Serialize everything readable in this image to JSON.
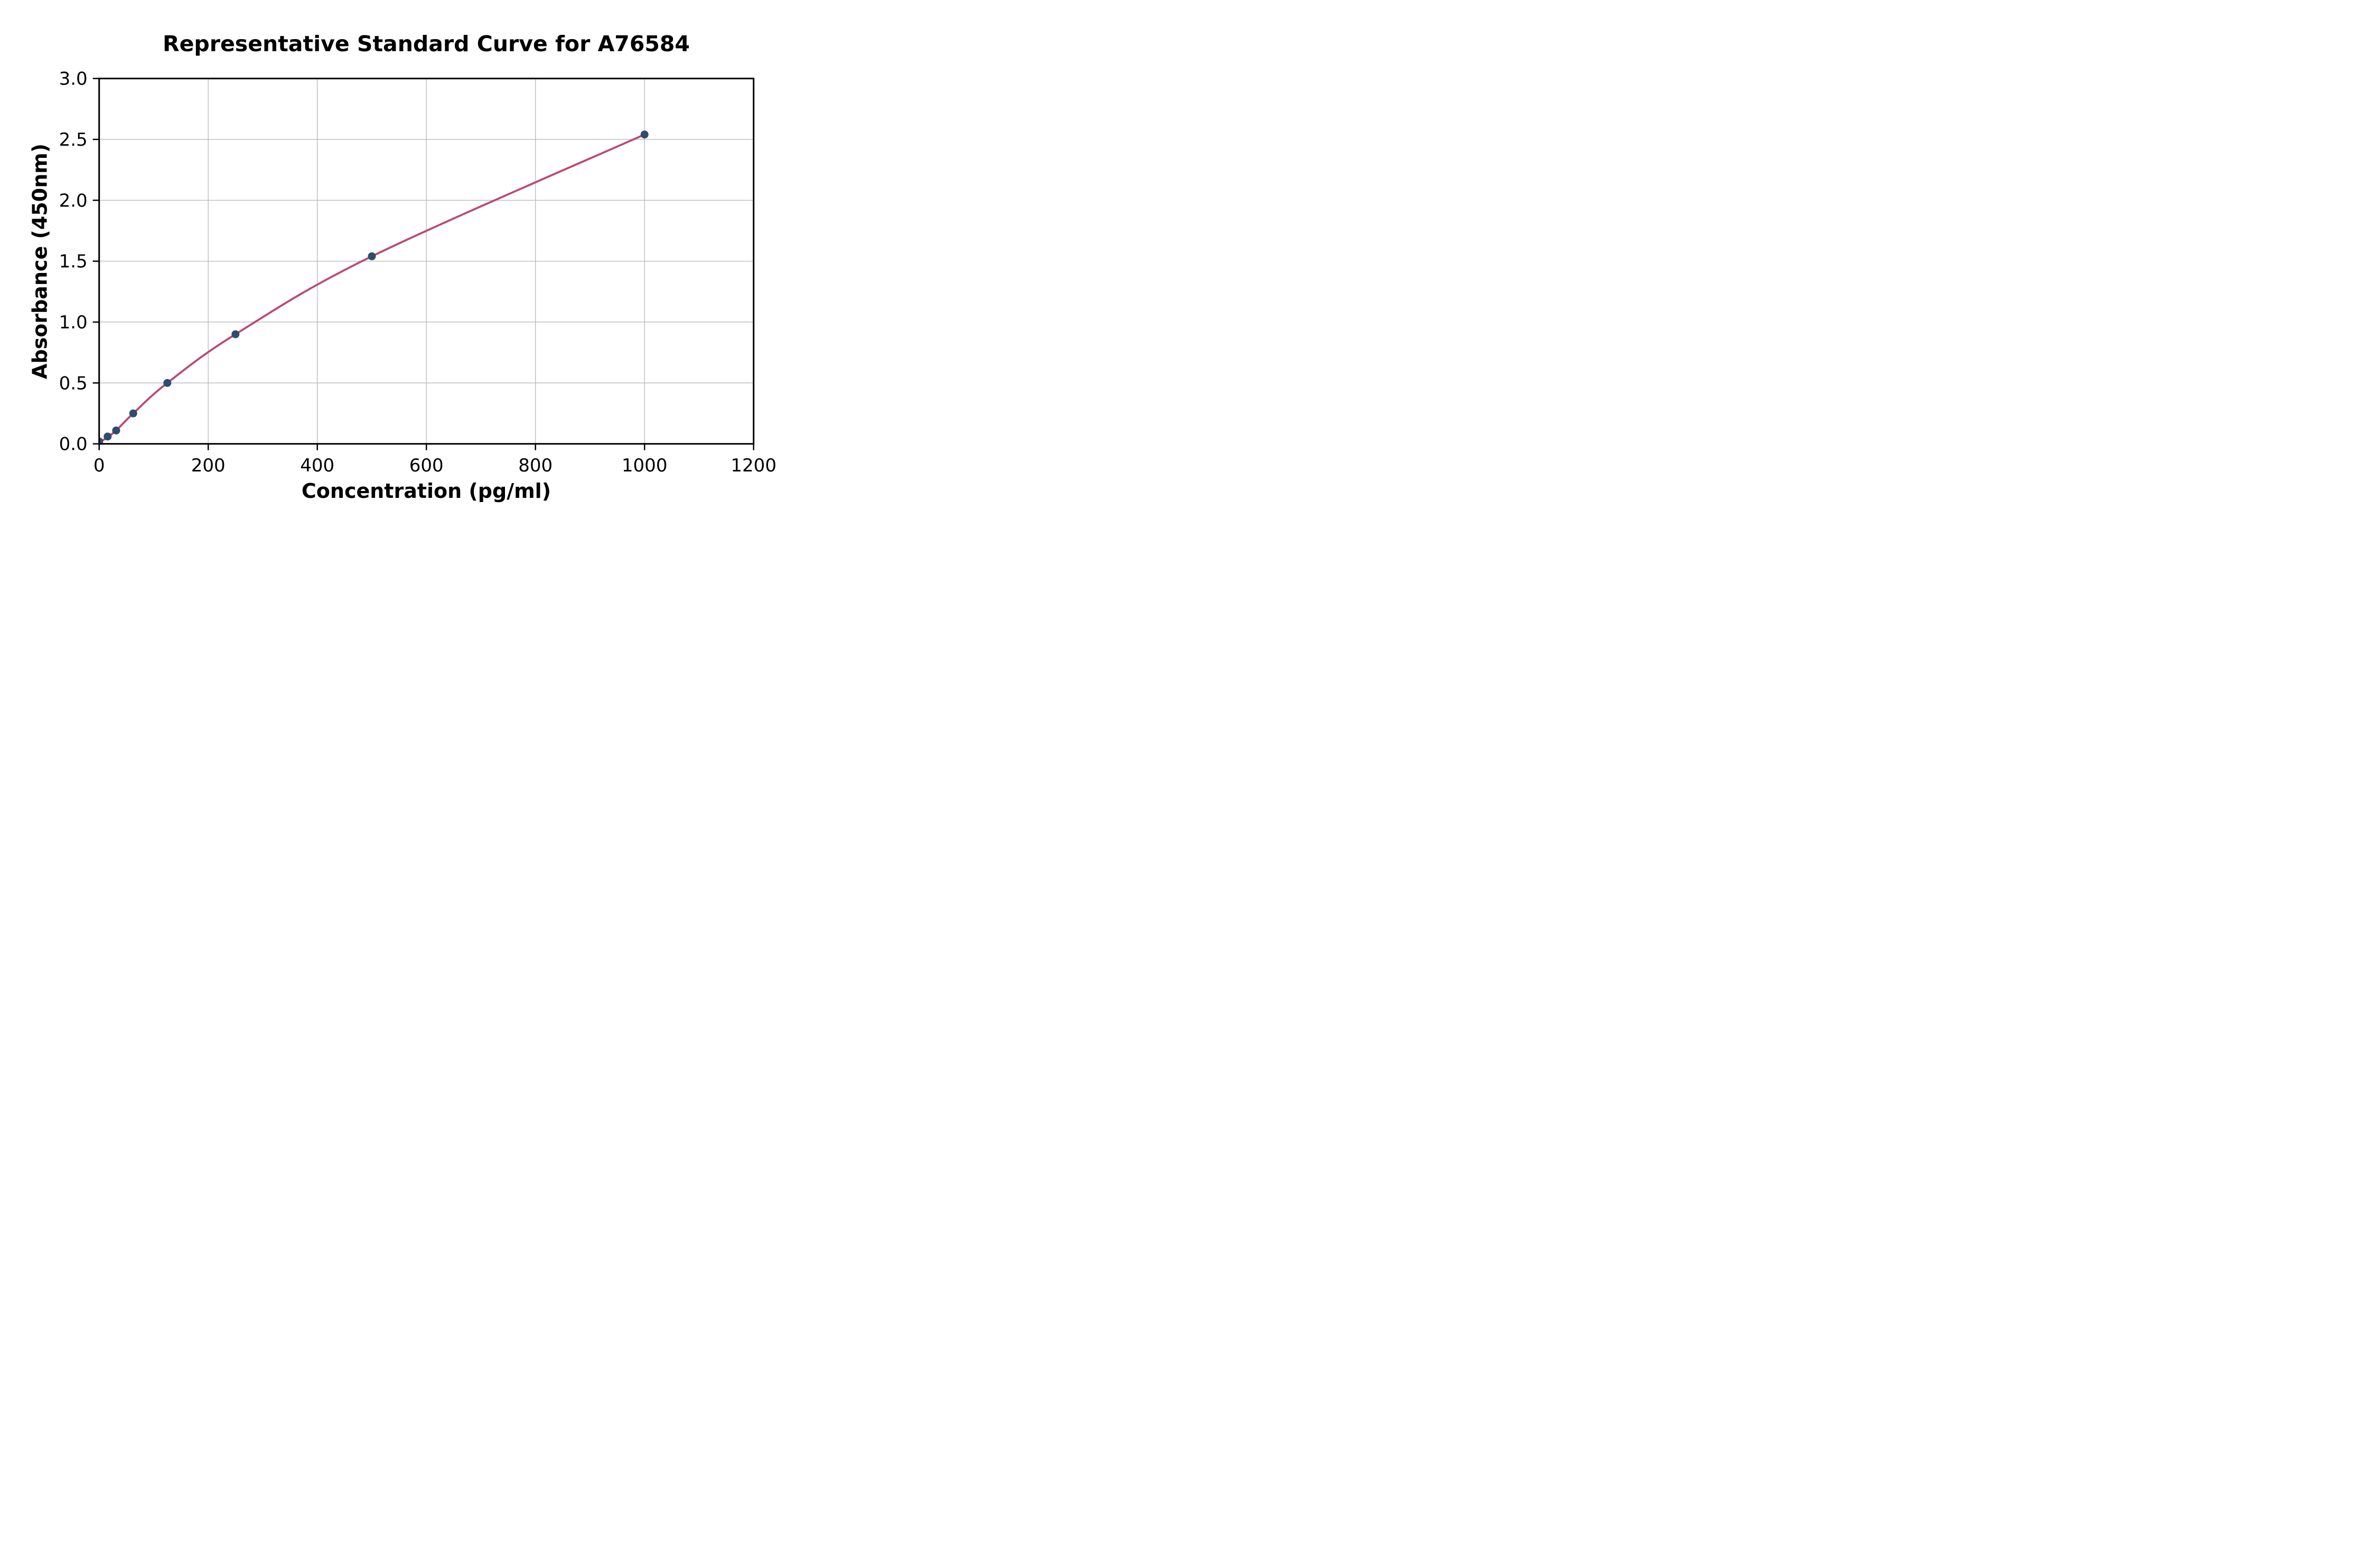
{
  "figure": {
    "background_color": "#ffffff"
  },
  "chart_data": {
    "type": "scatter",
    "title": "Representative Standard Curve for A76584",
    "xlabel": "Concentration (pg/ml)",
    "ylabel": "Absorbance (450nm)",
    "xlim": [
      0,
      1200
    ],
    "ylim": [
      0.0,
      3.0
    ],
    "xticks": [
      0,
      200,
      400,
      600,
      800,
      1000,
      1200
    ],
    "xtick_labels": [
      "0",
      "200",
      "400",
      "600",
      "800",
      "1000",
      "1200"
    ],
    "yticks": [
      0.0,
      0.5,
      1.0,
      1.5,
      2.0,
      2.5,
      3.0
    ],
    "ytick_labels": [
      "0.0",
      "0.5",
      "1.0",
      "1.5",
      "2.0",
      "2.5",
      "3.0"
    ],
    "grid": true,
    "legend_position": "none",
    "series": [
      {
        "name": "standard-points",
        "kind": "scatter",
        "x": [
          0,
          15.6,
          31.2,
          62.5,
          125,
          250,
          500,
          1000
        ],
        "y": [
          0.02,
          0.06,
          0.11,
          0.25,
          0.5,
          0.9,
          1.54,
          2.54
        ]
      },
      {
        "name": "fit-curve",
        "kind": "smooth-line",
        "x": [
          0,
          15.6,
          31.2,
          62.5,
          125,
          250,
          500,
          1000
        ],
        "y": [
          0.01,
          0.055,
          0.11,
          0.25,
          0.5,
          0.9,
          1.54,
          2.54
        ]
      }
    ],
    "colors": {
      "marker": "#2e4d6e",
      "fit_line": "#bc4a6e",
      "grid": "#b3b3b3",
      "axis": "#000000",
      "text": "#000000"
    }
  }
}
